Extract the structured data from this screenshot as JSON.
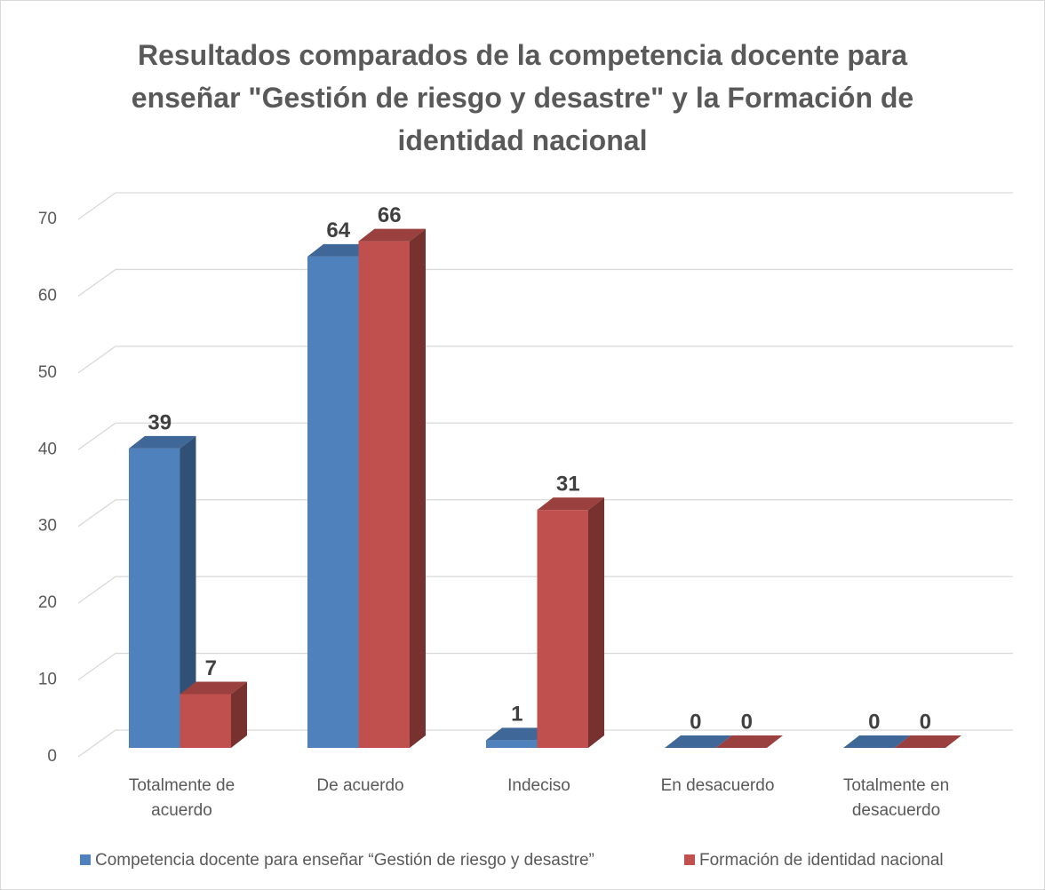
{
  "chart_data": {
    "type": "bar3d",
    "title": "Resultados comparados de la competencia docente para enseñar \"Gestión de riesgo y desastre\" y la Formación de identidad nacional",
    "categories": [
      "Totalmente de acuerdo",
      "De acuerdo",
      "Indeciso",
      "En desacuerdo",
      "Totalmente en desacuerdo"
    ],
    "series": [
      {
        "name": "Competencia docente para enseñar “Gestión de riesgo y desastre”",
        "color": "#4f81bd",
        "values": [
          39,
          64,
          1,
          0,
          0
        ]
      },
      {
        "name": "Formación de identidad nacional",
        "color": "#c0504d",
        "values": [
          7,
          66,
          31,
          0,
          0
        ]
      }
    ],
    "ylim": [
      0,
      70
    ],
    "yticks": [
      0,
      10,
      20,
      30,
      40,
      50,
      60,
      70
    ],
    "grid": true,
    "legend": "bottom"
  }
}
